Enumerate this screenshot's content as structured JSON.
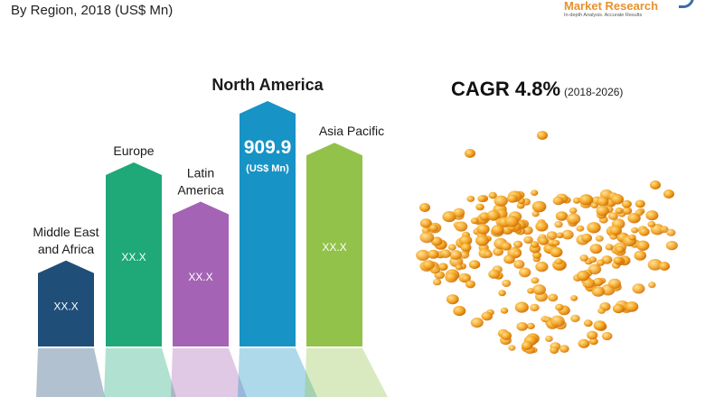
{
  "header": {
    "subtitle": "By Region, 2018 (US$ Mn)"
  },
  "brand": {
    "name": "Market Research",
    "tagline": "In-depth Analysis. Accurate Results"
  },
  "cagr": {
    "label": "CAGR 4.8%",
    "period": "(2018-2026)"
  },
  "colors": {
    "middle_east_africa": "#1f4e79",
    "europe": "#1fa878",
    "latin_america": "#a563b5",
    "north_america": "#1793c6",
    "asia_pacific": "#93c24a",
    "pellets": "#f0a020"
  },
  "chart_data": {
    "type": "bar",
    "categories": [
      "Middle East and Africa",
      "Europe",
      "Latin America",
      "North America",
      "Asia Pacific"
    ],
    "category_lines": [
      [
        "Middle East",
        "and Africa"
      ],
      [
        "Europe"
      ],
      [
        "Latin",
        "America"
      ],
      [
        "North America"
      ],
      [
        "Asia Pacific"
      ]
    ],
    "value_labels": [
      "XX.X",
      "XX.X",
      "XX.X",
      "909.9",
      "XX.X"
    ],
    "value_unit": "(US$ Mn)",
    "values": [
      null,
      null,
      null,
      909.9,
      null
    ],
    "relative_heights": [
      0.35,
      0.75,
      0.59,
      1.0,
      0.83
    ],
    "title": "",
    "xlabel": "",
    "ylabel": ""
  }
}
